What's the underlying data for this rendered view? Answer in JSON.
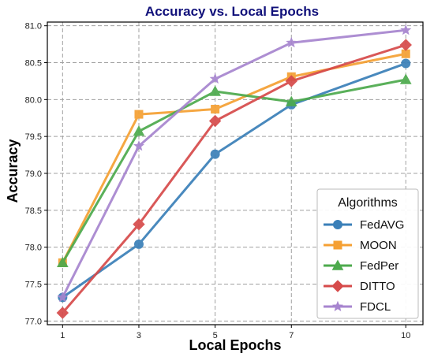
{
  "chart_data": {
    "type": "line",
    "title": "Accuracy vs. Local Epochs",
    "xlabel": "Local Epochs",
    "ylabel": "Accuracy",
    "x": [
      1,
      3,
      5,
      7,
      10
    ],
    "x_ticks": [
      "1",
      "3",
      "5",
      "7",
      "10"
    ],
    "y_ticks": [
      "77.0",
      "77.5",
      "78.0",
      "78.5",
      "79.0",
      "79.5",
      "80.0",
      "80.5",
      "81.0"
    ],
    "ylim": [
      76.95,
      81.05
    ],
    "xlim": [
      0.6,
      10.45
    ],
    "grid": true,
    "legend_title": "Algorithms",
    "legend_position": "bottom-right",
    "series": [
      {
        "name": "FedAVG",
        "values": [
          77.32,
          78.04,
          79.26,
          79.93,
          80.49
        ],
        "color": "#3a7fb8",
        "marker": "circle"
      },
      {
        "name": "MOON",
        "values": [
          77.79,
          79.8,
          79.87,
          80.31,
          80.62
        ],
        "color": "#f5a033",
        "marker": "square"
      },
      {
        "name": "FedPer",
        "values": [
          77.79,
          79.57,
          80.11,
          79.97,
          80.27
        ],
        "color": "#4daa4d",
        "marker": "triangle"
      },
      {
        "name": "DITTO",
        "values": [
          77.11,
          78.31,
          79.71,
          80.25,
          80.74
        ],
        "color": "#d64a4a",
        "marker": "diamond"
      },
      {
        "name": "FDCL",
        "values": [
          77.32,
          79.37,
          80.28,
          80.77,
          80.94
        ],
        "color": "#a785cf",
        "marker": "star"
      }
    ]
  }
}
